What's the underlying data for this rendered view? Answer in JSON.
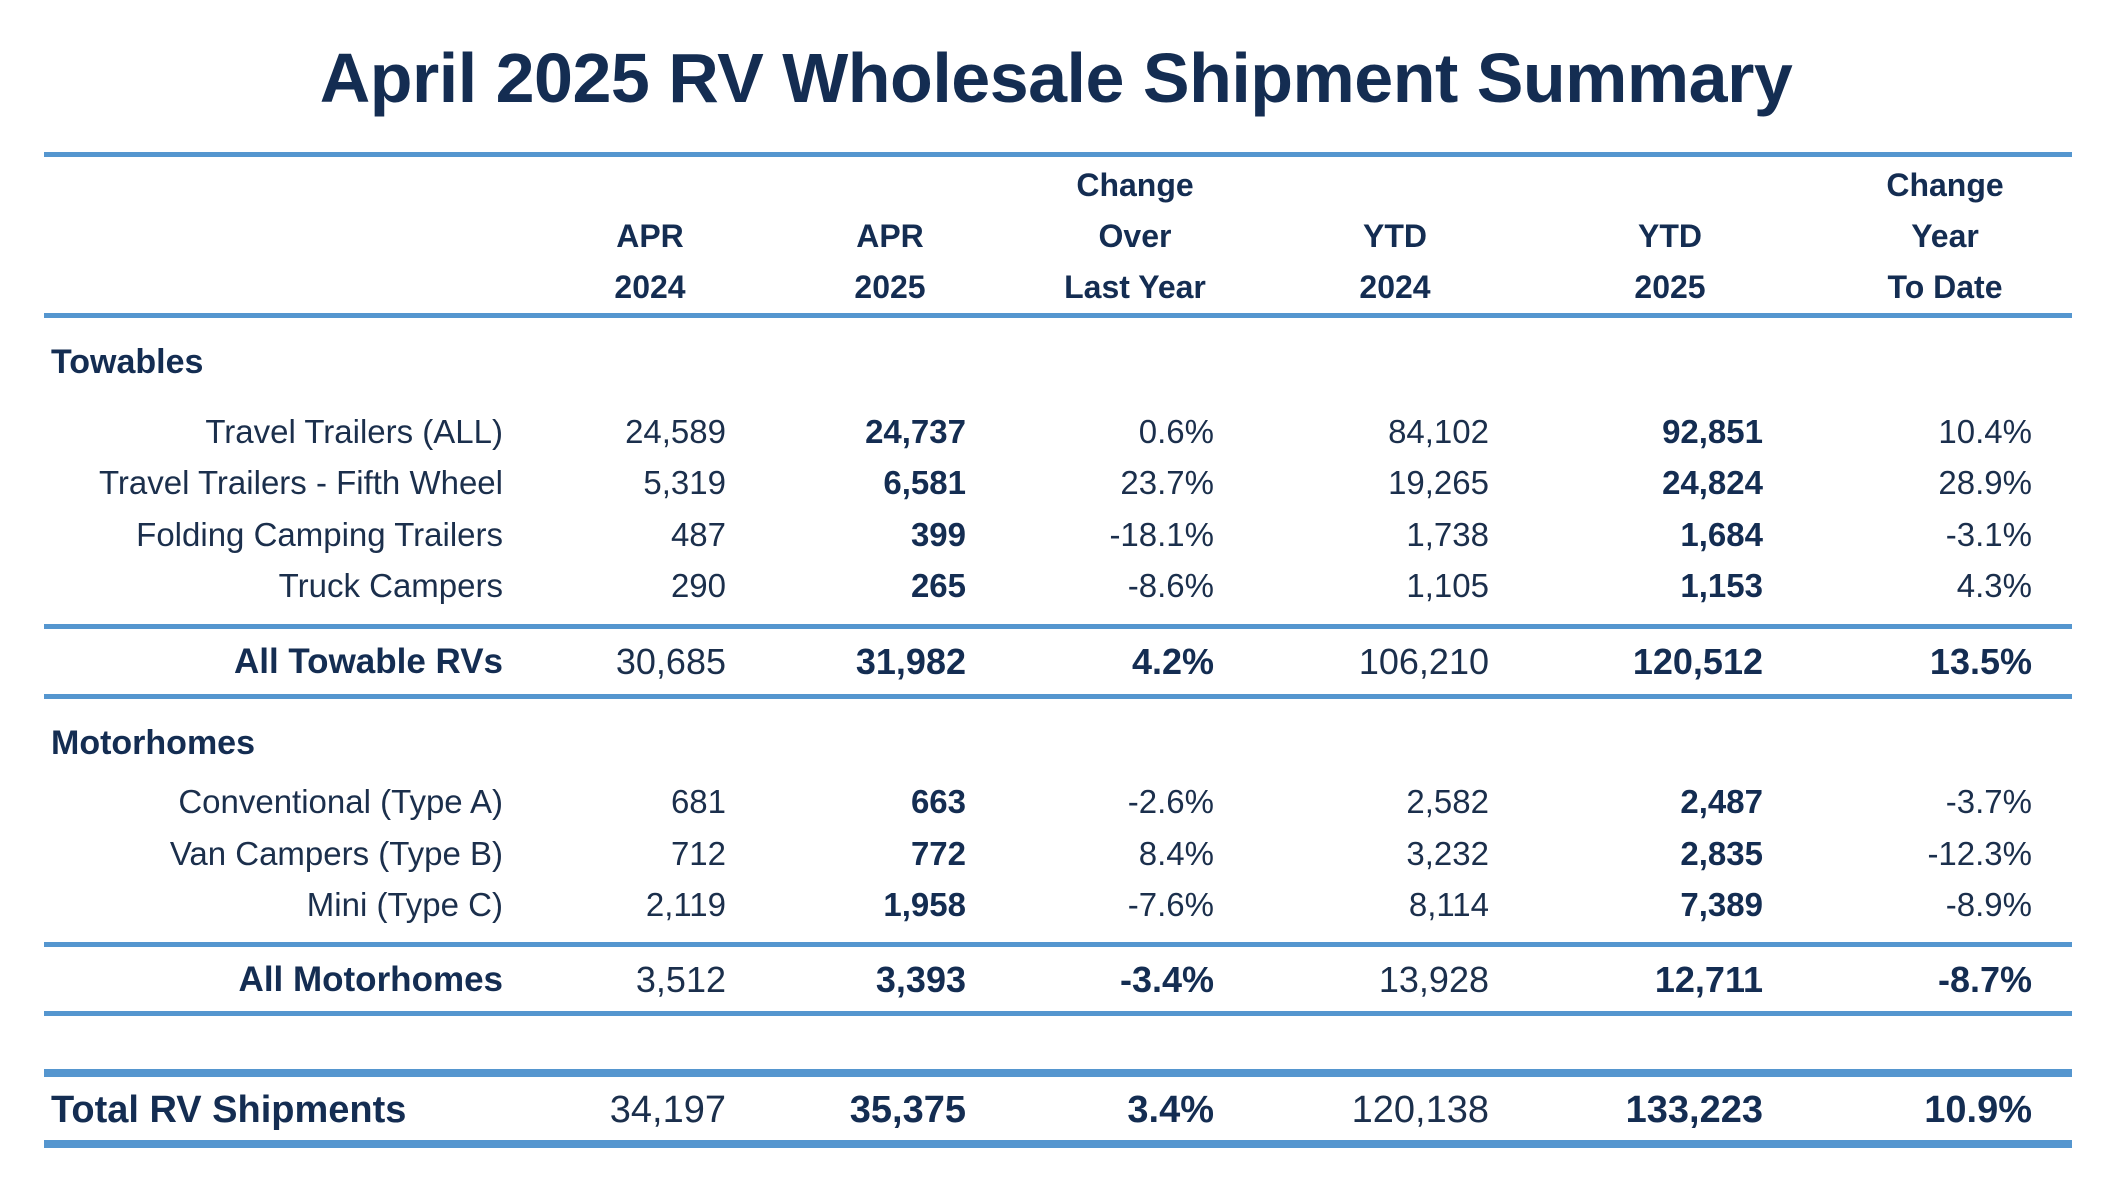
{
  "title": "April 2025 RV Wholesale Shipment Summary",
  "colors": {
    "rule": "#5596cf",
    "text": "#142d52"
  },
  "header": {
    "columns": [
      {
        "lines": [
          "",
          "APR",
          "2024"
        ]
      },
      {
        "lines": [
          "",
          "APR",
          "2025"
        ]
      },
      {
        "lines": [
          "Change",
          "Over",
          "Last Year"
        ]
      },
      {
        "lines": [
          "",
          "YTD",
          "2024"
        ]
      },
      {
        "lines": [
          "",
          "YTD",
          "2025"
        ]
      },
      {
        "lines": [
          "Change",
          "Year",
          "To Date"
        ]
      }
    ]
  },
  "towables": {
    "heading": "Towables",
    "rows": [
      {
        "label": "Travel Trailers (ALL)",
        "apr2024": "24,589",
        "apr2025": "24,737",
        "change_month": "0.6%",
        "ytd2024": "84,102",
        "ytd2025": "92,851",
        "change_ytd": "10.4%"
      },
      {
        "label": "Travel Trailers - Fifth Wheel",
        "apr2024": "5,319",
        "apr2025": "6,581",
        "change_month": "23.7%",
        "ytd2024": "19,265",
        "ytd2025": "24,824",
        "change_ytd": "28.9%"
      },
      {
        "label": "Folding Camping Trailers",
        "apr2024": "487",
        "apr2025": "399",
        "change_month": "-18.1%",
        "ytd2024": "1,738",
        "ytd2025": "1,684",
        "change_ytd": "-3.1%"
      },
      {
        "label": "Truck Campers",
        "apr2024": "290",
        "apr2025": "265",
        "change_month": "-8.6%",
        "ytd2024": "1,105",
        "ytd2025": "1,153",
        "change_ytd": "4.3%"
      }
    ],
    "subtotal": {
      "label": "All Towable RVs",
      "apr2024": "30,685",
      "apr2025": "31,982",
      "change_month": "4.2%",
      "ytd2024": "106,210",
      "ytd2025": "120,512",
      "change_ytd": "13.5%"
    }
  },
  "motorhomes": {
    "heading": "Motorhomes",
    "rows": [
      {
        "label": "Conventional (Type A)",
        "apr2024": "681",
        "apr2025": "663",
        "change_month": "-2.6%",
        "ytd2024": "2,582",
        "ytd2025": "2,487",
        "change_ytd": "-3.7%"
      },
      {
        "label": "Van Campers (Type B)",
        "apr2024": "712",
        "apr2025": "772",
        "change_month": "8.4%",
        "ytd2024": "3,232",
        "ytd2025": "2,835",
        "change_ytd": "-12.3%"
      },
      {
        "label": "Mini (Type C)",
        "apr2024": "2,119",
        "apr2025": "1,958",
        "change_month": "-7.6%",
        "ytd2024": "8,114",
        "ytd2025": "7,389",
        "change_ytd": "-8.9%"
      }
    ],
    "subtotal": {
      "label": "All Motorhomes",
      "apr2024": "3,512",
      "apr2025": "3,393",
      "change_month": "-3.4%",
      "ytd2024": "13,928",
      "ytd2025": "12,711",
      "change_ytd": "-8.7%"
    }
  },
  "total": {
    "label": "Total RV Shipments",
    "apr2024": "34,197",
    "apr2025": "35,375",
    "change_month": "3.4%",
    "ytd2024": "120,138",
    "ytd2025": "133,223",
    "change_ytd": "10.9%"
  }
}
